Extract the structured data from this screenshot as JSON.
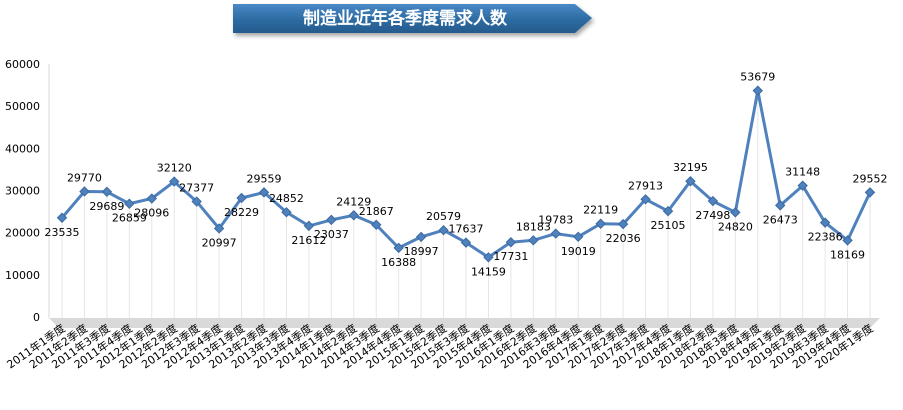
{
  "chart_data": {
    "type": "line",
    "title": "制造业近年各季度需求人数",
    "categories": [
      "2011年1季度",
      "2011年2季度",
      "2011年3季度",
      "2011年4季度",
      "2012年1季度",
      "2012年2季度",
      "2012年3季度",
      "2012年4季度",
      "2013年1季度",
      "2013年2季度",
      "2013年3季度",
      "2013年4季度",
      "2014年1季度",
      "2014年2季度",
      "2014年3季度",
      "2014年4季度",
      "2015年1季度",
      "2015年2季度",
      "2015年3季度",
      "2015年4季度",
      "2016年1季度",
      "2016年2季度",
      "2016年3季度",
      "2016年4季度",
      "2017年1季度",
      "2017年2季度",
      "2017年3季度",
      "2017年4季度",
      "2018年1季度",
      "2018年2季度",
      "2018年3季度",
      "2018年4季度",
      "2019年1季度",
      "2019年2季度",
      "2019年3季度",
      "2019年4季度",
      "2020年1季度"
    ],
    "values": [
      23535,
      29770,
      29689,
      26859,
      28096,
      32120,
      27377,
      20997,
      28229,
      29559,
      24852,
      21612,
      23037,
      24129,
      21867,
      16388,
      18997,
      20579,
      17637,
      14159,
      17731,
      18183,
      19783,
      19019,
      22119,
      22036,
      27913,
      25105,
      32195,
      27498,
      24820,
      53679,
      26473,
      31148,
      22386,
      18169,
      29552
    ],
    "label_pos": [
      "below",
      "above",
      "below",
      "below",
      "below",
      "above",
      "above",
      "below",
      "below",
      "above",
      "above",
      "below",
      "below",
      "above",
      "above",
      "below",
      "below",
      "above",
      "above",
      "below",
      "below",
      "above",
      "above",
      "below",
      "above",
      "below",
      "above",
      "below",
      "above",
      "below",
      "below",
      "above",
      "below",
      "above",
      "below",
      "below",
      "above"
    ],
    "yticks": [
      0,
      10000,
      20000,
      30000,
      40000,
      50000,
      60000
    ],
    "ylim": [
      0,
      60000
    ],
    "xlabel": "",
    "ylabel": "",
    "grid": false,
    "colors": {
      "line": "#4F81BD",
      "marker": "#4F81BD",
      "title_banner": "#2E6DA4",
      "title_text": "#FFFFFF",
      "axis": "#BFBFBF",
      "label_text": "#000000"
    }
  }
}
